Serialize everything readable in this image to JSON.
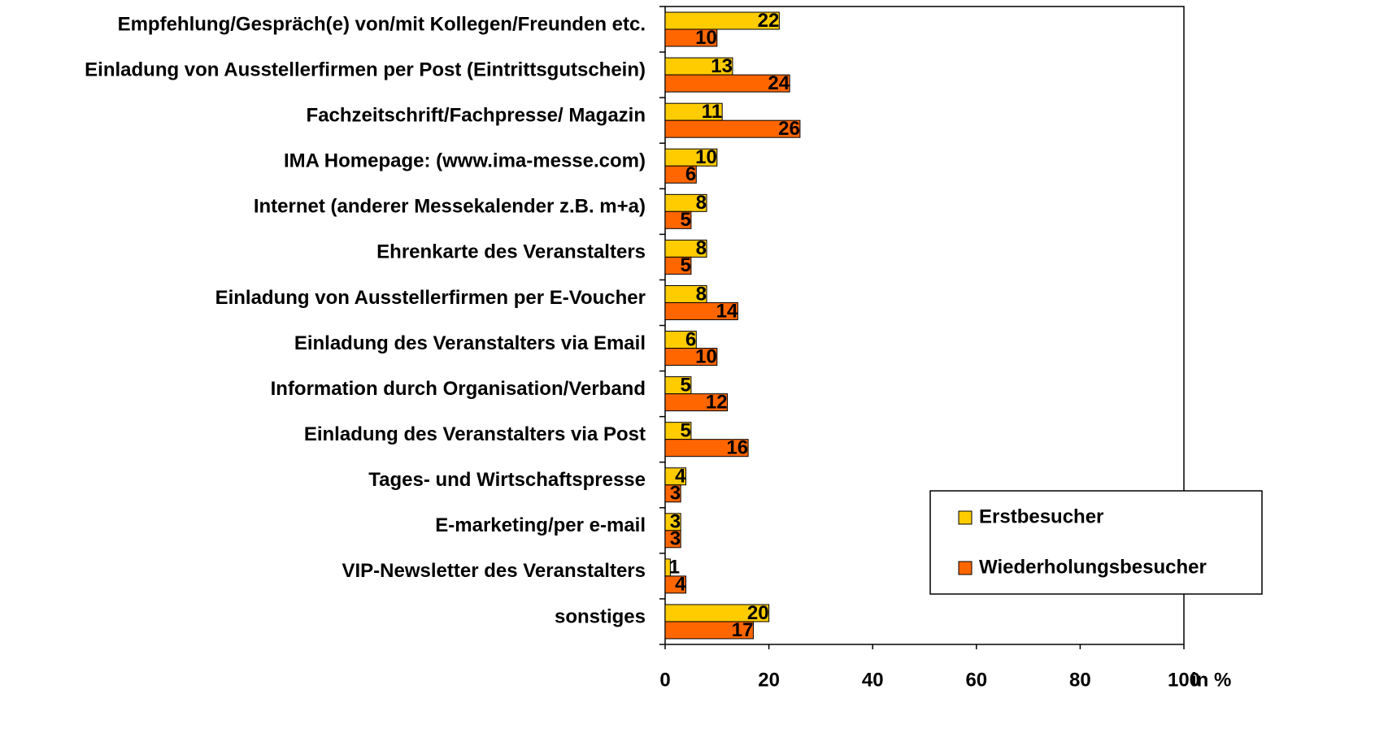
{
  "chart_data": {
    "type": "hbar",
    "categories": [
      "Empfehlung/Gespräch(e) von/mit Kollegen/Freunden etc.",
      "Einladung von Ausstellerfirmen per Post (Eintrittsgutschein)",
      "Fachzeitschrift/Fachpresse/ Magazin",
      "IMA Homepage: (www.ima-messe.com)",
      "Internet (anderer Messekalender z.B. m+a)",
      "Ehrenkarte des Veranstalters",
      "Einladung von Ausstellerfirmen per E-Voucher",
      "Einladung des Veranstalters via Email",
      "Information durch Organisation/Verband",
      "Einladung des Veranstalters via Post",
      "Tages- und Wirtschaftspresse",
      "E-marketing/per e-mail",
      "VIP-Newsletter des Veranstalters",
      "sonstiges"
    ],
    "series": [
      {
        "name": "Erstbesucher",
        "color": "#ffcc00",
        "values": [
          22,
          13,
          11,
          10,
          8,
          8,
          8,
          6,
          5,
          5,
          4,
          3,
          1,
          20
        ]
      },
      {
        "name": "Wiederholungsbesucher",
        "color": "#ff6600",
        "values": [
          10,
          24,
          26,
          6,
          5,
          5,
          14,
          10,
          12,
          16,
          3,
          3,
          4,
          17
        ]
      }
    ],
    "x_label": "in %",
    "xlim": [
      0,
      100
    ],
    "xticks": [
      0,
      20,
      40,
      60,
      80,
      100
    ],
    "legend": "bottom-right"
  }
}
